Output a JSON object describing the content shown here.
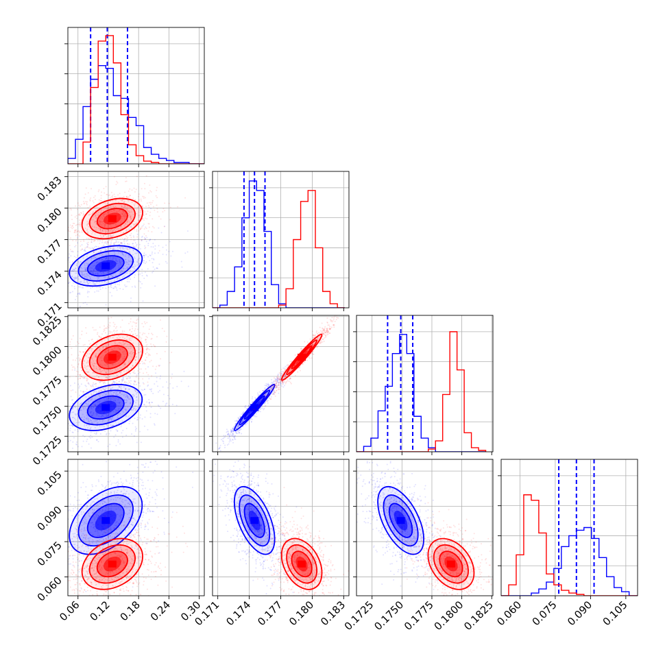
{
  "chart_data": {
    "type": "corner",
    "grid": true,
    "ticks": {
      "p0": [
        "0.06",
        "0.12",
        "0.18",
        "0.24",
        "0.30"
      ],
      "p1": [
        "0.171",
        "0.174",
        "0.177",
        "0.180",
        "0.183"
      ],
      "p2": [
        "0.1725",
        "0.1750",
        "0.1775",
        "0.1800",
        "0.1825"
      ],
      "p3": [
        "0.060",
        "0.075",
        "0.090",
        "0.105"
      ]
    },
    "ranges": {
      "p0": [
        0.04,
        0.31
      ],
      "p1": [
        0.1705,
        0.1835
      ],
      "p2": [
        0.1712,
        0.1826
      ],
      "p3": [
        0.052,
        0.11
      ]
    },
    "series": [
      {
        "color": "#0000ff",
        "quantiles": {
          "p0": [
            0.085,
            0.118,
            0.158
          ],
          "p1": [
            0.1735,
            0.1745,
            0.1755
          ],
          "p2": [
            0.1738,
            0.1749,
            0.1759
          ],
          "p3": [
            0.0765,
            0.084,
            0.0915
          ]
        },
        "hist": {
          "p0": {
            "edges": [
              0.04,
              0.055,
              0.07,
              0.085,
              0.1,
              0.115,
              0.13,
              0.145,
              0.16,
              0.175,
              0.19,
              0.205,
              0.22,
              0.235,
              0.25,
              0.265,
              0.28,
              0.295,
              0.31
            ],
            "counts": [
              0.04,
              0.18,
              0.42,
              0.62,
              0.72,
              0.7,
              0.5,
              0.48,
              0.34,
              0.28,
              0.12,
              0.07,
              0.04,
              0.025,
              0.01,
              0.01,
              0.0,
              0.0
            ]
          },
          "p1": {
            "edges": [
              0.1705,
              0.1712,
              0.1719,
              0.1726,
              0.1733,
              0.174,
              0.1747,
              0.1754,
              0.1761,
              0.1768,
              0.1775,
              0.1782,
              0.1789,
              0.1796,
              0.1803,
              0.181,
              0.1817,
              0.1824,
              0.1831
            ],
            "counts": [
              0.0,
              0.02,
              0.12,
              0.3,
              0.66,
              0.93,
              0.86,
              0.56,
              0.17,
              0.03,
              0.0,
              0.0,
              0.0,
              0.0,
              0.0,
              0.0,
              0.0,
              0.0
            ]
          },
          "p2": {
            "edges": [
              0.1712,
              0.1718,
              0.1724,
              0.173,
              0.1736,
              0.1742,
              0.1748,
              0.1754,
              0.176,
              0.1766,
              0.1772,
              0.1778,
              0.1784,
              0.179,
              0.1796,
              0.1802,
              0.1808,
              0.1814,
              0.182
            ],
            "counts": [
              0.0,
              0.04,
              0.1,
              0.3,
              0.48,
              0.72,
              0.86,
              0.72,
              0.26,
              0.1,
              0.03,
              0.0,
              0.0,
              0.0,
              0.0,
              0.0,
              0.0,
              0.0
            ]
          },
          "p3": {
            "edges": [
              0.052,
              0.0552,
              0.0584,
              0.0616,
              0.0648,
              0.068,
              0.0712,
              0.0744,
              0.0776,
              0.0808,
              0.084,
              0.0872,
              0.0904,
              0.0936,
              0.0968,
              0.1,
              0.1032,
              0.1064,
              0.11
            ],
            "counts": [
              0.0,
              0.0,
              0.0,
              0.0,
              0.02,
              0.05,
              0.1,
              0.2,
              0.36,
              0.44,
              0.48,
              0.5,
              0.42,
              0.28,
              0.14,
              0.06,
              0.03,
              0.0
            ]
          }
        },
        "corr": {
          "p0p1": 0.35,
          "p0p2": 0.35,
          "p1p2": 0.97,
          "p0p3": 0.45,
          "p1p3": -0.55,
          "p2p3": -0.55
        },
        "mode": {
          "p0": 0.115,
          "p1": 0.1745,
          "p2": 0.1749,
          "p3": 0.084
        },
        "sigma": {
          "p0": 0.03,
          "p1": 0.0008,
          "p2": 0.0008,
          "p3": 0.006
        }
      },
      {
        "color": "#ff0000",
        "quantiles": {},
        "hist": {
          "p0": {
            "edges": [
              0.04,
              0.055,
              0.07,
              0.085,
              0.1,
              0.115,
              0.13,
              0.145,
              0.16,
              0.175,
              0.19,
              0.205,
              0.22,
              0.235,
              0.25,
              0.265,
              0.28,
              0.295,
              0.31
            ],
            "counts": [
              0.0,
              0.0,
              0.16,
              0.56,
              0.9,
              0.94,
              0.74,
              0.36,
              0.14,
              0.06,
              0.02,
              0.01,
              0.0,
              0.0,
              0.0,
              0.0,
              0.0,
              0.0
            ]
          },
          "p1": {
            "edges": [
              0.1705,
              0.1712,
              0.1719,
              0.1726,
              0.1733,
              0.174,
              0.1747,
              0.1754,
              0.1761,
              0.1768,
              0.1775,
              0.1782,
              0.1789,
              0.1796,
              0.1803,
              0.181,
              0.1817,
              0.1824,
              0.1831
            ],
            "counts": [
              0.0,
              0.0,
              0.0,
              0.0,
              0.0,
              0.0,
              0.0,
              0.0,
              0.0,
              0.02,
              0.14,
              0.5,
              0.78,
              0.86,
              0.44,
              0.12,
              0.03,
              0.0
            ]
          },
          "p2": {
            "edges": [
              0.1712,
              0.1718,
              0.1724,
              0.173,
              0.1736,
              0.1742,
              0.1748,
              0.1754,
              0.176,
              0.1766,
              0.1772,
              0.1778,
              0.1784,
              0.179,
              0.1796,
              0.1802,
              0.1808,
              0.1814,
              0.182
            ],
            "counts": [
              0.0,
              0.0,
              0.0,
              0.0,
              0.0,
              0.0,
              0.0,
              0.0,
              0.0,
              0.0,
              0.02,
              0.08,
              0.42,
              0.88,
              0.6,
              0.14,
              0.03,
              0.01
            ]
          },
          "p3": {
            "edges": [
              0.052,
              0.0552,
              0.0584,
              0.0616,
              0.0648,
              0.068,
              0.0712,
              0.0744,
              0.0776,
              0.0808,
              0.084,
              0.0872,
              0.0904,
              0.0936,
              0.0968,
              0.1,
              0.1032,
              0.1064,
              0.11
            ],
            "counts": [
              0.0,
              0.08,
              0.3,
              0.74,
              0.7,
              0.46,
              0.16,
              0.08,
              0.04,
              0.02,
              0.01,
              0.0,
              0.0,
              0.0,
              0.0,
              0.0,
              0.0,
              0.0
            ]
          }
        },
        "corr": {
          "p0p1": 0.3,
          "p0p2": 0.3,
          "p1p2": 0.97,
          "p0p3": 0.3,
          "p1p3": -0.35,
          "p2p3": -0.35
        },
        "mode": {
          "p0": 0.128,
          "p1": 0.179,
          "p2": 0.1791,
          "p3": 0.0655
        },
        "sigma": {
          "p0": 0.025,
          "p1": 0.0008,
          "p2": 0.0008,
          "p3": 0.0045
        }
      }
    ]
  }
}
